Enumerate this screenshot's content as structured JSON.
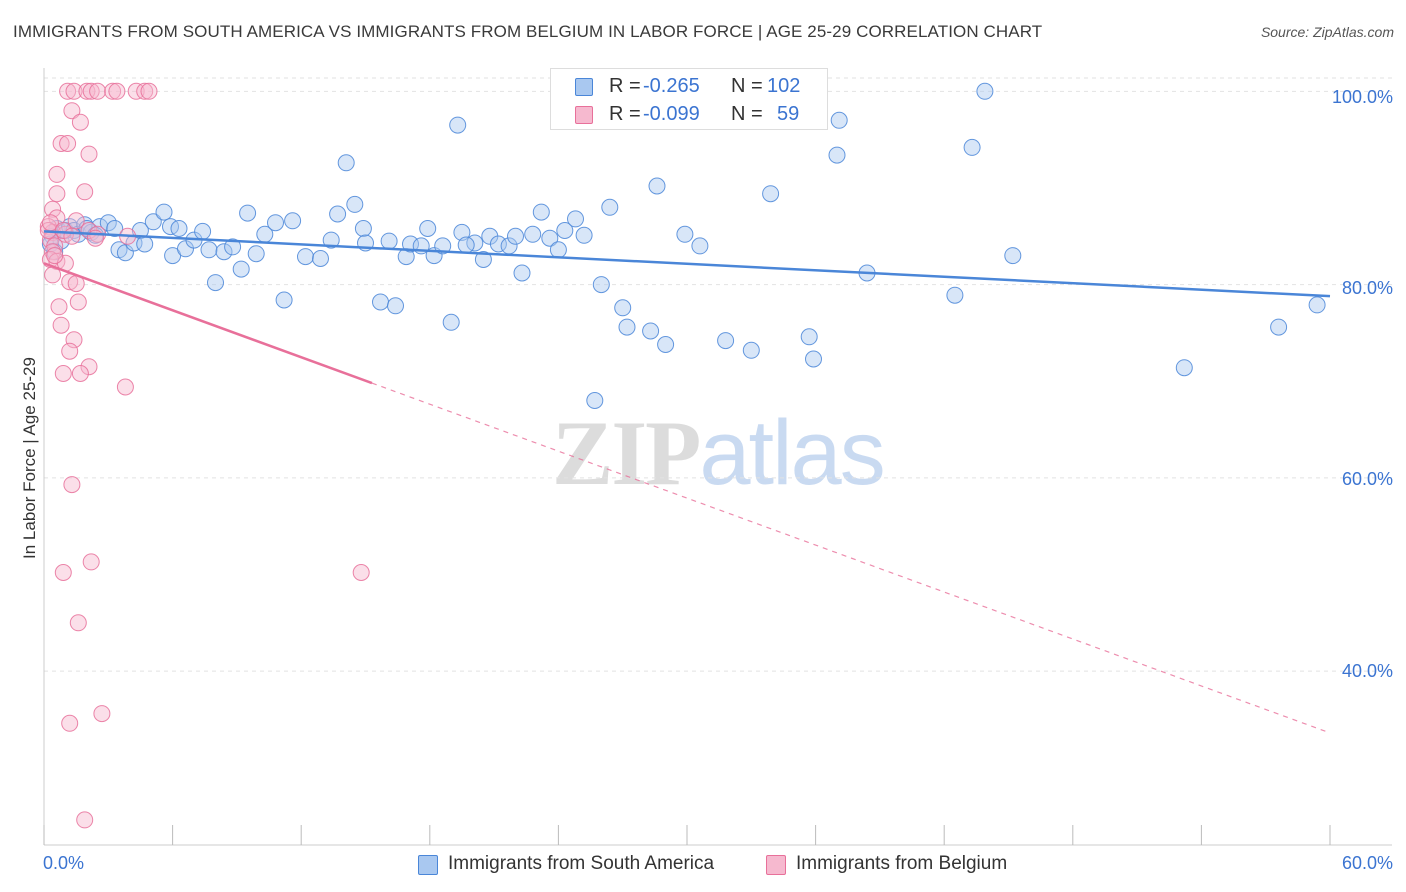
{
  "header": {
    "title": "IMMIGRANTS FROM SOUTH AMERICA VS IMMIGRANTS FROM BELGIUM IN LABOR FORCE | AGE 25-29 CORRELATION CHART",
    "source": "Source: ZipAtlas.com"
  },
  "watermark": {
    "zip": "ZIP",
    "atlas": "atlas"
  },
  "legend": {
    "rows": [
      {
        "r_label": "R =",
        "r_value": "-0.265",
        "n_label": "N =",
        "n_value": "102"
      },
      {
        "r_label": "R =",
        "r_value": "-0.099",
        "n_label": "N =",
        "n_value": "59"
      }
    ]
  },
  "chart_data": {
    "type": "scatter",
    "title": "IMMIGRANTS FROM SOUTH AMERICA VS IMMIGRANTS FROM BELGIUM IN LABOR FORCE | AGE 25-29 CORRELATION CHART",
    "xlabel": "",
    "ylabel": "In Labor Force | Age 25-29",
    "xlim": [
      0,
      60
    ],
    "ylim": [
      22,
      102
    ],
    "x_tick_labels": [
      "0.0%",
      "60.0%"
    ],
    "y_tick_labels": [
      "100.0%",
      "80.0%",
      "60.0%",
      "40.0%"
    ],
    "y_ticks": [
      100,
      80,
      60,
      40
    ],
    "grid": true,
    "legend_position": "bottom",
    "colors": {
      "blue": "#4a86d8",
      "blue_fill": "#a9c8f0",
      "pink": "#e8709a",
      "pink_fill": "#f6b9cf"
    },
    "series": [
      {
        "name": "Immigrants from South America",
        "color": "#4a86d8",
        "R": -0.265,
        "N": 102,
        "trend": {
          "x": [
            0,
            60
          ],
          "y": [
            85.5,
            78.8
          ]
        },
        "points": [
          [
            0.4,
            85.0
          ],
          [
            0.6,
            85.8
          ],
          [
            0.8,
            84.5
          ],
          [
            1.0,
            85.6
          ],
          [
            1.2,
            86.0
          ],
          [
            1.4,
            85.6
          ],
          [
            1.6,
            85.2
          ],
          [
            1.9,
            86.2
          ],
          [
            2.2,
            85.4
          ],
          [
            2.6,
            86.0
          ],
          [
            0.3,
            84.2
          ],
          [
            0.5,
            83.4
          ],
          [
            2.0,
            85.8
          ],
          [
            2.4,
            85.1
          ],
          [
            3.0,
            86.4
          ],
          [
            3.3,
            85.8
          ],
          [
            3.5,
            83.6
          ],
          [
            3.8,
            83.3
          ],
          [
            4.2,
            84.3
          ],
          [
            4.5,
            85.6
          ],
          [
            4.7,
            84.2
          ],
          [
            5.1,
            86.5
          ],
          [
            5.6,
            87.5
          ],
          [
            5.9,
            86.0
          ],
          [
            6.3,
            85.8
          ],
          [
            6.0,
            83.0
          ],
          [
            6.6,
            83.7
          ],
          [
            7.0,
            84.6
          ],
          [
            7.4,
            85.5
          ],
          [
            7.7,
            83.6
          ],
          [
            8.0,
            80.2
          ],
          [
            8.4,
            83.4
          ],
          [
            8.8,
            83.9
          ],
          [
            9.2,
            81.6
          ],
          [
            9.5,
            87.4
          ],
          [
            9.9,
            83.2
          ],
          [
            10.3,
            85.2
          ],
          [
            10.8,
            86.4
          ],
          [
            11.2,
            78.4
          ],
          [
            11.6,
            86.6
          ],
          [
            12.2,
            82.9
          ],
          [
            12.9,
            82.7
          ],
          [
            13.4,
            84.6
          ],
          [
            13.7,
            87.3
          ],
          [
            14.1,
            92.6
          ],
          [
            14.5,
            88.3
          ],
          [
            14.9,
            85.8
          ],
          [
            15.0,
            84.3
          ],
          [
            15.7,
            78.2
          ],
          [
            16.1,
            84.5
          ],
          [
            16.4,
            77.8
          ],
          [
            16.9,
            82.9
          ],
          [
            17.1,
            84.2
          ],
          [
            17.6,
            84.0
          ],
          [
            17.9,
            85.8
          ],
          [
            18.2,
            83.0
          ],
          [
            18.6,
            84.0
          ],
          [
            19.0,
            76.1
          ],
          [
            19.3,
            96.5
          ],
          [
            19.5,
            85.4
          ],
          [
            20.1,
            84.3
          ],
          [
            20.5,
            82.6
          ],
          [
            20.8,
            85.0
          ],
          [
            21.2,
            84.2
          ],
          [
            21.7,
            84.0
          ],
          [
            22.0,
            85.0
          ],
          [
            22.3,
            81.2
          ],
          [
            22.8,
            85.2
          ],
          [
            23.2,
            87.5
          ],
          [
            23.6,
            84.8
          ],
          [
            24.0,
            83.6
          ],
          [
            24.3,
            85.6
          ],
          [
            24.8,
            86.8
          ],
          [
            25.2,
            85.1
          ],
          [
            25.7,
            68.0
          ],
          [
            26.0,
            80.0
          ],
          [
            26.4,
            88.0
          ],
          [
            27.0,
            77.6
          ],
          [
            27.2,
            75.6
          ],
          [
            28.3,
            75.2
          ],
          [
            28.6,
            90.2
          ],
          [
            29.0,
            73.8
          ],
          [
            29.9,
            85.2
          ],
          [
            30.6,
            84.0
          ],
          [
            31.8,
            74.2
          ],
          [
            33.0,
            73.2
          ],
          [
            33.9,
            89.4
          ],
          [
            35.7,
            74.6
          ],
          [
            35.9,
            72.3
          ],
          [
            37.0,
            93.4
          ],
          [
            38.4,
            81.2
          ],
          [
            42.5,
            78.9
          ],
          [
            43.3,
            94.2
          ],
          [
            43.9,
            100.0
          ],
          [
            45.2,
            83.0
          ],
          [
            53.2,
            71.4
          ],
          [
            59.4,
            77.9
          ],
          [
            57.6,
            75.6
          ],
          [
            37.1,
            97.0
          ],
          [
            19.7,
            84.1
          ]
        ]
      },
      {
        "name": "Immigrants from Belgium",
        "color": "#e8709a",
        "R": -0.099,
        "N": 59,
        "trend": {
          "x": [
            0,
            60
          ],
          "y": [
            82.2,
            33.6
          ]
        },
        "points": [
          [
            1.1,
            100.0
          ],
          [
            1.4,
            100.0
          ],
          [
            2.0,
            100.0
          ],
          [
            2.2,
            100.0
          ],
          [
            2.5,
            100.0
          ],
          [
            3.2,
            100.0
          ],
          [
            3.4,
            100.0
          ],
          [
            4.3,
            100.0
          ],
          [
            4.7,
            100.0
          ],
          [
            4.9,
            100.0
          ],
          [
            1.3,
            98.0
          ],
          [
            1.7,
            96.8
          ],
          [
            0.8,
            94.6
          ],
          [
            1.1,
            94.6
          ],
          [
            2.1,
            93.5
          ],
          [
            0.6,
            91.4
          ],
          [
            0.6,
            89.4
          ],
          [
            1.9,
            89.6
          ],
          [
            0.4,
            87.8
          ],
          [
            0.6,
            86.9
          ],
          [
            1.5,
            86.6
          ],
          [
            0.2,
            86.0
          ],
          [
            0.4,
            85.4
          ],
          [
            1.0,
            85.2
          ],
          [
            2.1,
            85.6
          ],
          [
            2.5,
            85.2
          ],
          [
            3.9,
            85.0
          ],
          [
            0.3,
            84.6
          ],
          [
            0.5,
            84.0
          ],
          [
            0.4,
            83.4
          ],
          [
            0.3,
            82.6
          ],
          [
            0.6,
            82.4
          ],
          [
            1.0,
            82.2
          ],
          [
            0.4,
            81.0
          ],
          [
            1.2,
            80.3
          ],
          [
            1.5,
            80.1
          ],
          [
            1.6,
            78.2
          ],
          [
            0.7,
            77.7
          ],
          [
            0.8,
            75.8
          ],
          [
            1.4,
            74.3
          ],
          [
            1.2,
            73.1
          ],
          [
            2.1,
            71.5
          ],
          [
            0.9,
            70.8
          ],
          [
            1.7,
            70.8
          ],
          [
            3.8,
            69.4
          ],
          [
            1.3,
            59.3
          ],
          [
            2.2,
            51.3
          ],
          [
            0.9,
            50.2
          ],
          [
            14.8,
            50.2
          ],
          [
            1.6,
            45.0
          ],
          [
            2.7,
            35.6
          ],
          [
            1.2,
            34.6
          ],
          [
            1.9,
            24.6
          ],
          [
            0.2,
            85.6
          ],
          [
            0.5,
            83.0
          ],
          [
            0.3,
            86.4
          ],
          [
            0.9,
            85.6
          ],
          [
            1.3,
            85.0
          ],
          [
            2.4,
            84.8
          ]
        ]
      }
    ]
  },
  "bottom_legend": [
    {
      "label": "Immigrants from South America"
    },
    {
      "label": "Immigrants from Belgium"
    }
  ]
}
